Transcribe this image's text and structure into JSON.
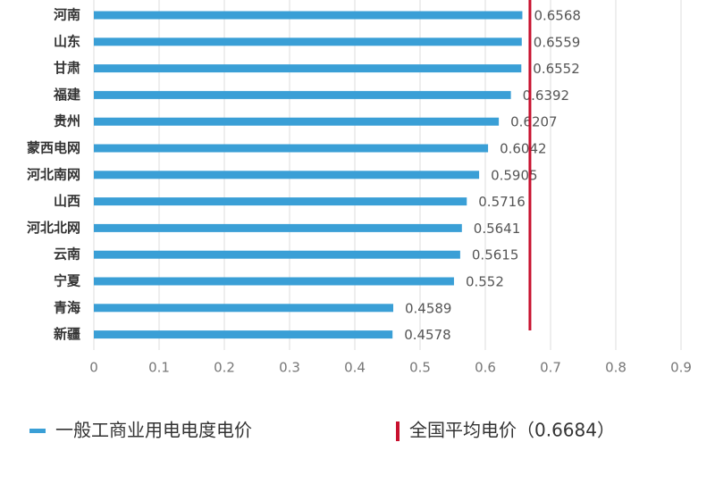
{
  "chart_data": {
    "type": "bar",
    "orientation": "horizontal",
    "categories": [
      "河南",
      "山东",
      "甘肃",
      "福建",
      "贵州",
      "蒙西电网",
      "河北南网",
      "山西",
      "河北北网",
      "云南",
      "宁夏",
      "青海",
      "新疆"
    ],
    "series": [
      {
        "name": "一般工商业用电电度电价",
        "color": "#3a9fd6",
        "values": [
          0.6568,
          0.6559,
          0.6552,
          0.6392,
          0.6207,
          0.6042,
          0.5905,
          0.5716,
          0.5641,
          0.5615,
          0.552,
          0.4589,
          0.4578
        ]
      }
    ],
    "reference": {
      "value": 0.6684,
      "label": "全国平均电价（0.6684）",
      "color": "#c8102e"
    },
    "xlim": [
      0,
      0.9
    ],
    "xticks": [
      0,
      0.1,
      0.2,
      0.3,
      0.4,
      0.5,
      0.6,
      0.7,
      0.8,
      0.9
    ],
    "grid": true
  }
}
